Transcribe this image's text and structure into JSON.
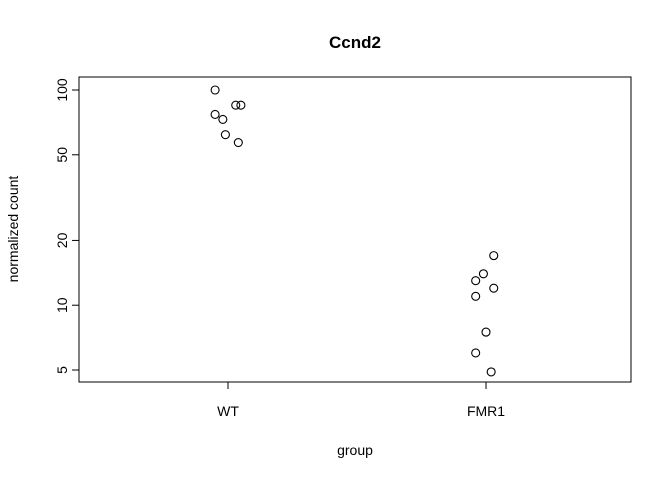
{
  "chart_data": {
    "type": "scatter",
    "title": "Ccnd2",
    "xlabel": "group",
    "ylabel": "normalized count",
    "y_scale": "log",
    "ylim": [
      4.3,
      125
    ],
    "categories": [
      "WT",
      "FMR1"
    ],
    "yticks": [
      5,
      10,
      20,
      50,
      100
    ],
    "ytick_labels": [
      "5",
      "10",
      "20",
      "50",
      "100"
    ],
    "grid": false,
    "points": [
      {
        "group": "WT",
        "jitter": -0.05,
        "value": 100
      },
      {
        "group": "WT",
        "jitter": -0.05,
        "value": 77
      },
      {
        "group": "WT",
        "jitter": -0.02,
        "value": 73
      },
      {
        "group": "WT",
        "jitter": 0.03,
        "value": 85
      },
      {
        "group": "WT",
        "jitter": 0.05,
        "value": 85
      },
      {
        "group": "WT",
        "jitter": -0.01,
        "value": 62
      },
      {
        "group": "WT",
        "jitter": 0.04,
        "value": 57
      },
      {
        "group": "FMR1",
        "jitter": 0.03,
        "value": 17
      },
      {
        "group": "FMR1",
        "jitter": -0.01,
        "value": 14
      },
      {
        "group": "FMR1",
        "jitter": -0.04,
        "value": 13
      },
      {
        "group": "FMR1",
        "jitter": 0.03,
        "value": 12
      },
      {
        "group": "FMR1",
        "jitter": -0.04,
        "value": 11
      },
      {
        "group": "FMR1",
        "jitter": 0.0,
        "value": 7.5
      },
      {
        "group": "FMR1",
        "jitter": -0.04,
        "value": 6
      },
      {
        "group": "FMR1",
        "jitter": 0.02,
        "value": 4.9
      }
    ]
  }
}
